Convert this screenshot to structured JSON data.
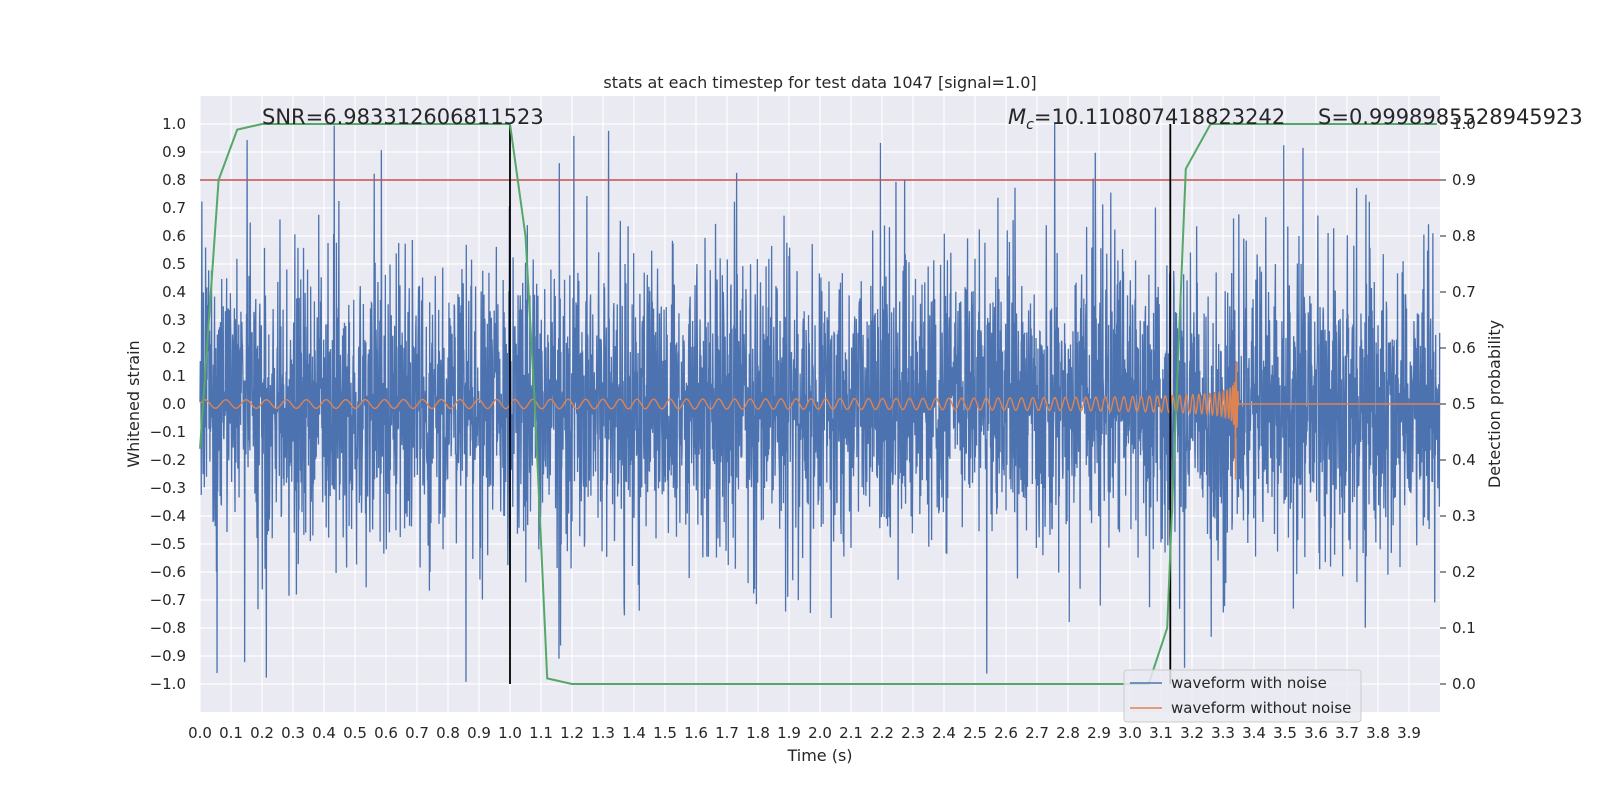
{
  "chart_data": {
    "type": "line",
    "title": "stats at each timestep for test data 1047 [signal=1.0]",
    "xlabel": "Time (s)",
    "ylabel": "Whitened strain",
    "y2label": "Detection probability",
    "xlim": [
      0.0,
      4.0
    ],
    "ylim": [
      -1.09,
      1.09
    ],
    "y2lim": [
      -0.045,
      1.045
    ],
    "xticks": [
      "0.0",
      "0.1",
      "0.2",
      "0.3",
      "0.4",
      "0.5",
      "0.6",
      "0.7",
      "0.8",
      "0.9",
      "1.0",
      "1.1",
      "1.2",
      "1.3",
      "1.4",
      "1.5",
      "1.6",
      "1.7",
      "1.8",
      "1.9",
      "2.0",
      "2.1",
      "2.2",
      "2.3",
      "2.4",
      "2.5",
      "2.6",
      "2.7",
      "2.8",
      "2.9",
      "3.0",
      "3.1",
      "3.2",
      "3.3",
      "3.4",
      "3.5",
      "3.6",
      "3.7",
      "3.8",
      "3.9"
    ],
    "yticks": [
      "1.0",
      "0.9",
      "0.8",
      "0.7",
      "0.6",
      "0.5",
      "0.4",
      "0.3",
      "0.2",
      "0.1",
      "0.0",
      "−0.1",
      "−0.2",
      "−0.3",
      "−0.4",
      "−0.5",
      "−0.6",
      "−0.7",
      "−0.8",
      "−0.9",
      "−1.0"
    ],
    "y2ticks": [
      "1.0",
      "0.9",
      "0.8",
      "0.7",
      "0.6",
      "0.5",
      "0.4",
      "0.3",
      "0.2",
      "0.1",
      "0.0"
    ],
    "grid": true,
    "legend_position": "lower-right",
    "series": [
      {
        "name": "waveform with noise",
        "color": "#4c72b0",
        "kind": "noise",
        "duration": 4.0,
        "amplitude_typical": 0.3,
        "amplitude_max": 1.0
      },
      {
        "name": "waveform without noise",
        "color": "#dd8452",
        "kind": "chirp",
        "duration": 3.35,
        "merger_time": 3.34,
        "peak_amplitude": 0.27,
        "start_amplitude": 0.015
      },
      {
        "name": "",
        "color": "#55a868",
        "kind": "probability",
        "axis": "right",
        "x": [
          0.0,
          0.06,
          0.12,
          0.2,
          0.3,
          0.5,
          0.8,
          0.98,
          1.0,
          1.05,
          1.08,
          1.12,
          1.2,
          1.5,
          2.0,
          2.5,
          3.0,
          3.06,
          3.12,
          3.18,
          3.26,
          3.4,
          3.99
        ],
        "y": [
          0.42,
          0.9,
          0.99,
          1.0,
          1.0,
          1.0,
          1.0,
          1.0,
          1.0,
          0.8,
          0.5,
          0.01,
          0.0,
          0.0,
          0.0,
          0.0,
          0.0,
          0.0,
          0.1,
          0.92,
          1.0,
          1.0,
          1.0
        ]
      }
    ],
    "threshold": {
      "axis": "right",
      "value": 0.9,
      "color": "#c44e52"
    },
    "vlines": [
      1.0,
      3.13
    ],
    "annotations": [
      {
        "id": "snr",
        "prefix": "SNR=",
        "value": "6.983312606811523"
      },
      {
        "id": "mc",
        "prefix": "=",
        "symbol": "M",
        "subscript": "c",
        "value": "10.110807418823242"
      },
      {
        "id": "s",
        "prefix": "S=",
        "value": "0.9998985528945923"
      }
    ]
  }
}
